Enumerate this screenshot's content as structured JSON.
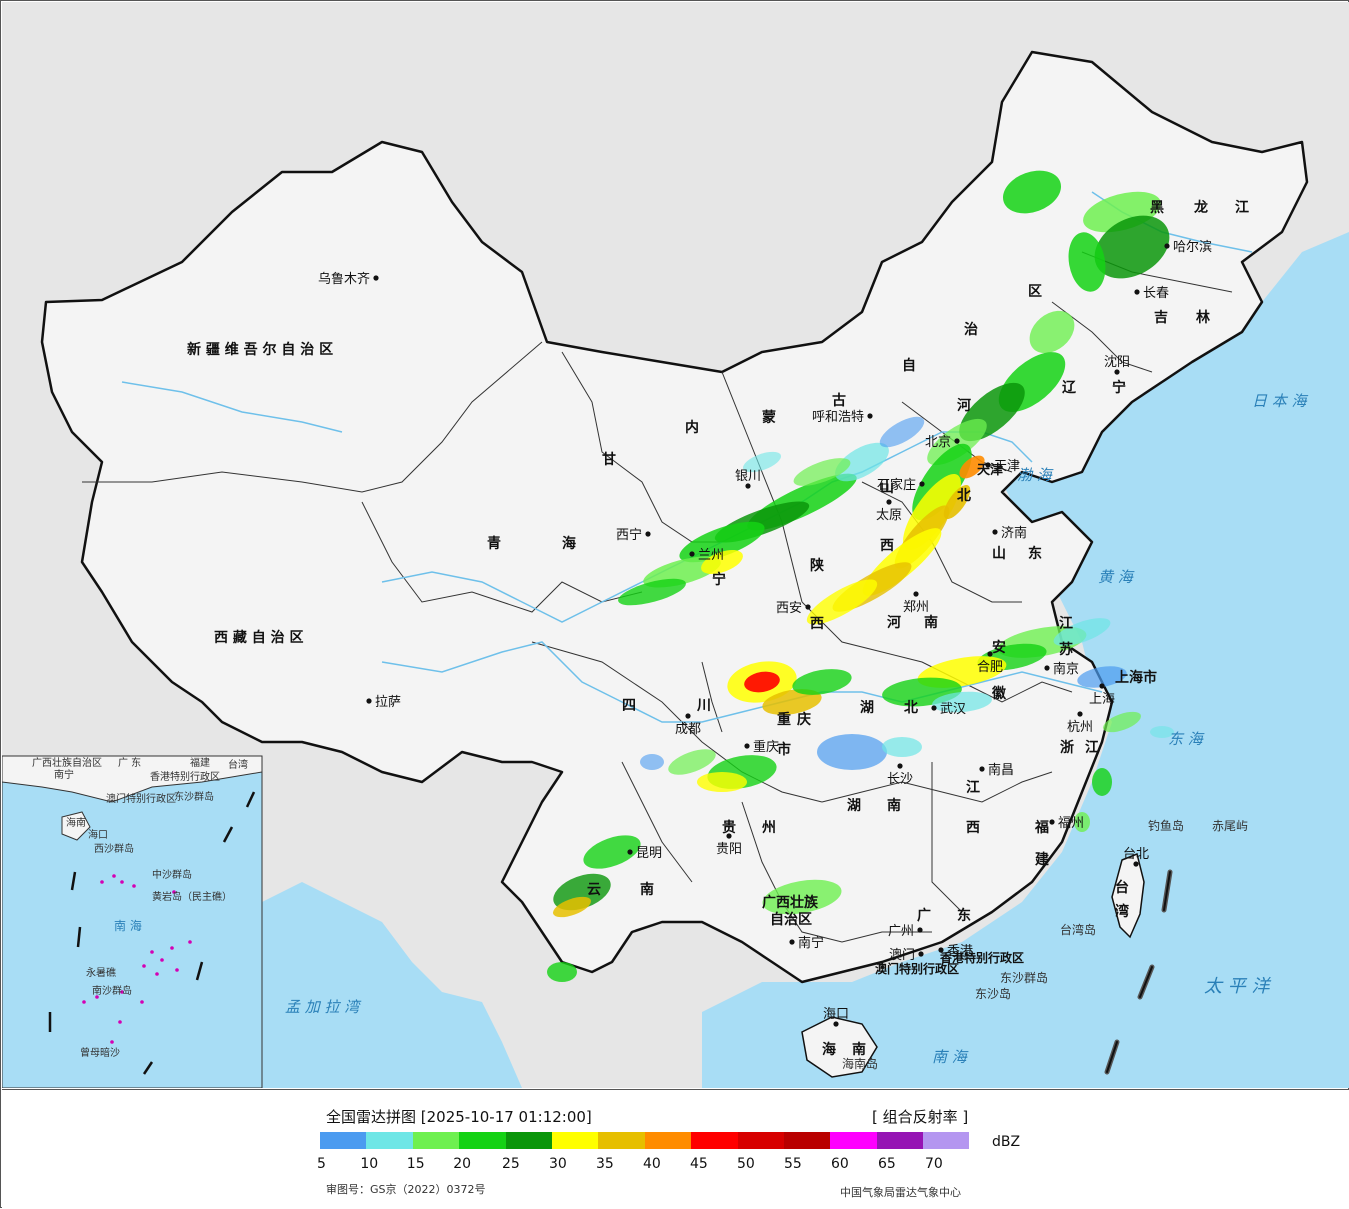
{
  "map": {
    "provinces": {
      "xinjiang": "新 疆 维 吾 尔 自 治 区",
      "tibet": "西 藏 自 治 区",
      "qinghai_1": "青",
      "qinghai_2": "海",
      "gansu": "甘",
      "nei_1": "内",
      "nei_2": "蒙",
      "nei_3": "古",
      "nei_4": "自",
      "nei_5": "治",
      "nei_6": "区",
      "heilongjiang_1": "黑",
      "heilongjiang_2": "龙",
      "heilongjiang_3": "江",
      "jilin_1": "吉",
      "jilin_2": "林",
      "liaoning_1": "辽",
      "liaoning_2": "宁",
      "hebei_1": "河",
      "hebei_2": "北",
      "shanxi_1": "山",
      "shanxi_2": "西",
      "shandong_1": "山",
      "shandong_2": "东",
      "henan_1": "河",
      "henan_2": "南",
      "shaanxi_1": "陕",
      "shaanxi_2": "西",
      "ningxia": "宁",
      "sichuan_1": "四",
      "sichuan_2": "川",
      "chongqing_1": "重",
      "chongqing_2": "庆",
      "chongqing_3": "市",
      "hubei_1": "湖",
      "hubei_2": "北",
      "hunan_1": "湖",
      "hunan_2": "南",
      "jiangxi_1": "江",
      "jiangxi_2": "西",
      "anhui_1": "安",
      "anhui_2": "徽",
      "jiangsu_1": "江",
      "jiangsu_2": "苏",
      "zhejiang_1": "浙",
      "zhejiang_2": "江",
      "fujian_1": "福",
      "fujian_2": "建",
      "guizhou_1": "贵",
      "guizhou_2": "州",
      "yunnan_1": "云",
      "yunnan_2": "南",
      "guangxi_1": "广西壮族",
      "guangxi_2": "自治区",
      "guangdong_1": "广",
      "guangdong_2": "东",
      "hainan_1": "海",
      "hainan_2": "南",
      "shanghai": "上海市",
      "tianjin": "天津",
      "beijing": "北京",
      "hk": "香港特别行政区",
      "macau": "澳门特别行政区",
      "taiwan_1": "台",
      "taiwan_2": "湾"
    },
    "cities": {
      "urumqi": "乌鲁木齐",
      "lhasa": "拉萨",
      "xining": "西宁",
      "yinchuan": "银川",
      "lanzhou": "兰州",
      "hohhot": "呼和浩特",
      "beijing": "北京",
      "tianjin": "天津",
      "shijiazhuang": "石家庄",
      "taiyuan": "太原",
      "jinan": "济南",
      "zhengzhou": "郑州",
      "xian": "西安",
      "chengdu": "成都",
      "chongqing": "重庆",
      "wuhan": "武汉",
      "changsha": "长沙",
      "nanchang": "南昌",
      "hefei": "合肥",
      "nanjing": "南京",
      "shanghai": "上海",
      "hangzhou": "杭州",
      "fuzhou": "福州",
      "taipei": "台北",
      "guiyang": "贵阳",
      "kunming": "昆明",
      "nanning": "南宁",
      "guangzhou": "广州",
      "hongkong": "香港",
      "macau": "澳门",
      "haikou": "海口",
      "shenyang": "沈阳",
      "changchun": "长春",
      "harbin": "哈尔滨"
    },
    "seas": {
      "japan_sea": "日 本 海",
      "bohai": "渤 海",
      "yellow_sea": "黄 海",
      "east_sea": "东 海",
      "pacific": "太 平 洋",
      "south_sea": "南 海",
      "bengal": "孟 加 拉 湾"
    },
    "islands": {
      "diaoyu": "钓鱼岛",
      "chiwei": "赤尾屿",
      "taiwan_island": "台湾岛",
      "dongsha_islands": "东沙群岛",
      "dongsha_island": "东沙岛",
      "hainan_island": "海南岛"
    },
    "inset": {
      "guangxi": "广西壮族自治区",
      "guangdong": "广 东",
      "fujian": "福建",
      "taiwan": "台湾",
      "nanning": "南宁",
      "hk": "香港特别行政区",
      "macau": "澳门特别行政区",
      "dongsha": "东沙群岛",
      "hainan": "海南",
      "haikou": "海口",
      "xisha": "西沙群岛",
      "zhongsha": "中沙群岛",
      "huangyan": "黄岩岛（民主礁）",
      "south_sea": "南 海",
      "yongshu": "永暑礁",
      "nansha": "南沙群岛",
      "zengmu": "曾母暗沙"
    },
    "colors": {
      "land": "#f4f4f4",
      "outside_land": "#e8e8e8",
      "sea": "#a8ddf5",
      "border": "#111111"
    }
  },
  "legend": {
    "title": "全国雷达拼图 [2025-10-17 01:12:00]",
    "product": "[ 组合反射率 ]",
    "unit": "dBZ",
    "colors": [
      "#4b9bf0",
      "#6ee6e6",
      "#6ef050",
      "#14d214",
      "#0a960a",
      "#ffff00",
      "#e6bf00",
      "#ff8c00",
      "#ff0000",
      "#d70000",
      "#b90000",
      "#ff00ff",
      "#9614b4",
      "#b496f0"
    ],
    "ticks": [
      "5",
      "10",
      "15",
      "20",
      "25",
      "30",
      "35",
      "40",
      "45",
      "50",
      "55",
      "60",
      "65",
      "70"
    ],
    "approval": "审图号：GS京（2022）0372号",
    "agency": "中国气象局雷达气象中心"
  }
}
